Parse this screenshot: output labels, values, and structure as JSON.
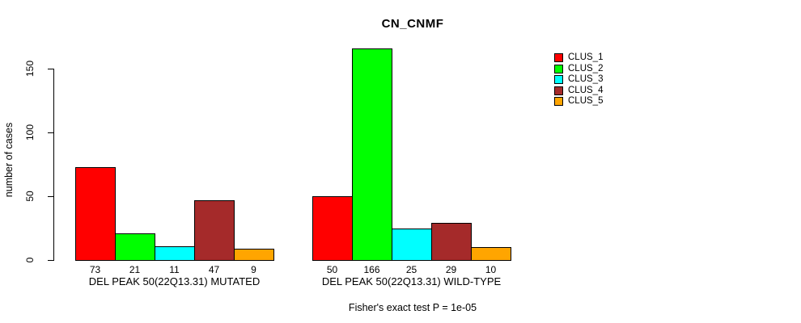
{
  "chart_data": {
    "type": "bar",
    "title": "CN_CNMF",
    "ylabel": "number of cases",
    "xlabel": "",
    "ylim": [
      0,
      166
    ],
    "yticks": [
      "0",
      "50",
      "100",
      "150"
    ],
    "ytick_values": [
      0,
      50,
      100,
      150
    ],
    "grid": false,
    "bar_border_color": "#000000",
    "categories": [
      "CLUS_1",
      "CLUS_2",
      "CLUS_3",
      "CLUS_4",
      "CLUS_5"
    ],
    "bar_colors": [
      "#ff0000",
      "#00ff00",
      "#00ffff",
      "#a52a2a",
      "#ffa500"
    ],
    "groups": [
      {
        "label": "DEL PEAK 50(22Q13.31) MUTATED",
        "values": [
          73,
          21,
          11,
          47,
          9
        ]
      },
      {
        "label": "DEL PEAK 50(22Q13.31) WILD-TYPE",
        "values": [
          50,
          166,
          25,
          29,
          10
        ]
      }
    ],
    "value_labels_shown": true,
    "legend": {
      "position": "top-right",
      "entries": [
        {
          "label": "CLUS_1",
          "color": "#ff0000"
        },
        {
          "label": "CLUS_2",
          "color": "#00ff00"
        },
        {
          "label": "CLUS_3",
          "color": "#00ffff"
        },
        {
          "label": "CLUS_4",
          "color": "#a52a2a"
        },
        {
          "label": "CLUS_5",
          "color": "#ffa500"
        }
      ]
    },
    "annotation": "Fisher's exact test P = 1e-05"
  }
}
